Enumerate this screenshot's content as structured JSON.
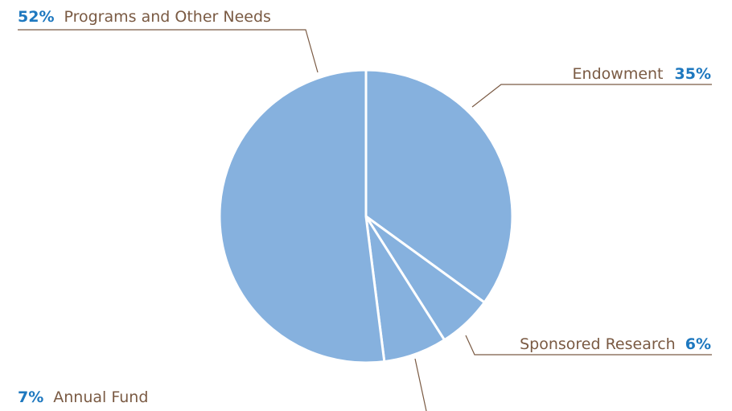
{
  "chart_data": {
    "type": "pie",
    "title": "",
    "slices": [
      {
        "label": "Endowment",
        "value": 35,
        "pct_label": "35%"
      },
      {
        "label": "Sponsored Research",
        "value": 6,
        "pct_label": "6%"
      },
      {
        "label": "Annual Fund",
        "value": 7,
        "pct_label": "7%"
      },
      {
        "label": "Programs and Other Needs",
        "value": 52,
        "pct_label": "52%"
      }
    ],
    "slice_color": "#86b1de",
    "slice_border_color": "#ffffff",
    "label_color": "#7a5a43",
    "percent_color": "#1e78bf"
  }
}
